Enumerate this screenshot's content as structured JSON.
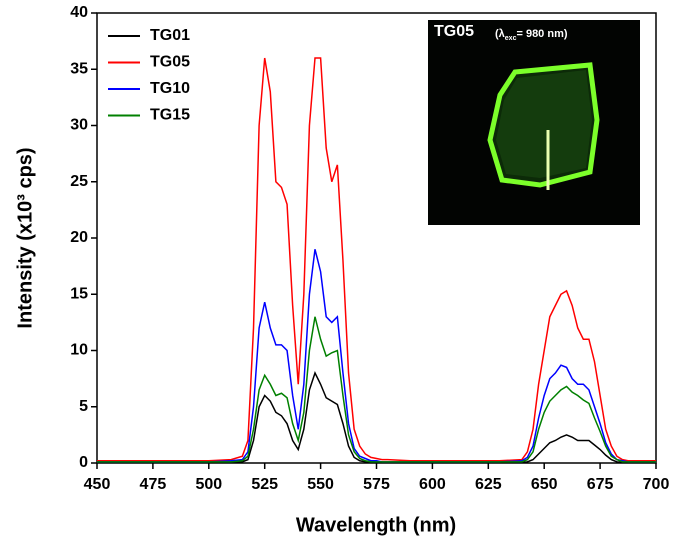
{
  "chart_data": {
    "type": "line",
    "x_label": "Wavelength (nm)",
    "y_label": "Intensity (x10³ cps)",
    "x": [
      450,
      460,
      470,
      480,
      490,
      500,
      510,
      515,
      517.5,
      520,
      522.5,
      525,
      527.5,
      530,
      532.5,
      535,
      537.5,
      540,
      542.5,
      545,
      547.5,
      550,
      552.5,
      555,
      557.5,
      560,
      562.5,
      565,
      567.5,
      570,
      572.5,
      575,
      577.5,
      580,
      590,
      600,
      610,
      620,
      630,
      640,
      642.5,
      645,
      647.5,
      650,
      652.5,
      655,
      657.5,
      660,
      662.5,
      665,
      667.5,
      670,
      672.5,
      675,
      677.5,
      680,
      682.5,
      685,
      687.5,
      690,
      695,
      700
    ],
    "series": [
      {
        "name": "TG01",
        "color": "#000000",
        "values": [
          0.05,
          0.05,
          0.05,
          0.05,
          0.05,
          0.05,
          0.05,
          0.1,
          0.3,
          2,
          5,
          6,
          5.5,
          4.5,
          4.2,
          3.5,
          2,
          1.2,
          3,
          6.5,
          8,
          7,
          5.8,
          5.5,
          5.2,
          3.5,
          1.5,
          0.5,
          0.2,
          0.1,
          0.1,
          0.1,
          0.05,
          0.05,
          0.05,
          0.05,
          0.05,
          0.05,
          0.05,
          0.05,
          0.1,
          0.3,
          0.8,
          1.3,
          1.8,
          2,
          2.3,
          2.5,
          2.3,
          2,
          2,
          2,
          1.6,
          1.2,
          0.7,
          0.3,
          0.1,
          0.05,
          0.05,
          0.05,
          0.05,
          0.05
        ]
      },
      {
        "name": "TG05",
        "color": "#ff0000",
        "values": [
          0.2,
          0.2,
          0.2,
          0.2,
          0.2,
          0.2,
          0.3,
          0.6,
          2,
          12,
          30,
          36,
          33,
          25,
          24.5,
          23,
          14,
          7,
          15,
          30,
          36,
          36,
          28,
          25,
          26.5,
          18,
          8,
          3,
          1.5,
          0.8,
          0.5,
          0.4,
          0.3,
          0.3,
          0.2,
          0.2,
          0.2,
          0.2,
          0.2,
          0.3,
          1,
          3,
          7,
          10,
          13,
          14,
          15,
          15.3,
          14,
          12,
          11,
          11,
          9,
          6,
          3,
          1.5,
          0.6,
          0.3,
          0.2,
          0.2,
          0.2,
          0.2
        ]
      },
      {
        "name": "TG10",
        "color": "#0000ff",
        "values": [
          0.1,
          0.1,
          0.1,
          0.1,
          0.1,
          0.1,
          0.2,
          0.3,
          1,
          5,
          12,
          14.3,
          12,
          10.5,
          10.5,
          10,
          6,
          3,
          7,
          15,
          19,
          17,
          13,
          12.5,
          13,
          8,
          3.5,
          1.3,
          0.6,
          0.4,
          0.2,
          0.2,
          0.1,
          0.1,
          0.1,
          0.1,
          0.1,
          0.1,
          0.1,
          0.2,
          0.5,
          1.5,
          4,
          6,
          7.5,
          8,
          8.7,
          8.5,
          7.5,
          7,
          7,
          6.5,
          5,
          3.5,
          1.8,
          0.8,
          0.3,
          0.2,
          0.1,
          0.1,
          0.1,
          0.1
        ]
      },
      {
        "name": "TG15",
        "color": "#008000",
        "values": [
          0.1,
          0.1,
          0.1,
          0.1,
          0.1,
          0.1,
          0.1,
          0.2,
          0.6,
          3,
          6.5,
          7.8,
          7,
          6,
          6.2,
          5.8,
          3.5,
          2,
          4.5,
          10,
          13,
          11,
          9.5,
          9.8,
          10,
          6,
          2.5,
          1,
          0.4,
          0.2,
          0.1,
          0.1,
          0.1,
          0.1,
          0.1,
          0.1,
          0.1,
          0.1,
          0.1,
          0.1,
          0.3,
          1,
          3,
          4.5,
          5.5,
          6,
          6.5,
          6.8,
          6.3,
          6,
          5.6,
          5.3,
          4,
          2.8,
          1.5,
          0.6,
          0.3,
          0.1,
          0.1,
          0.1,
          0.1,
          0.1
        ]
      }
    ],
    "xlim": [
      450,
      700
    ],
    "xticks": [
      450,
      475,
      500,
      525,
      550,
      575,
      600,
      625,
      650,
      675,
      700
    ],
    "ylim": [
      0,
      40
    ],
    "yticks": [
      0,
      5,
      10,
      15,
      20,
      25,
      30,
      35,
      40
    ],
    "grid": false,
    "legend": "upper left",
    "inset": {
      "title": "TG05",
      "caption": [
        "(λ",
        "exc",
        "= 980 nm)"
      ]
    }
  }
}
